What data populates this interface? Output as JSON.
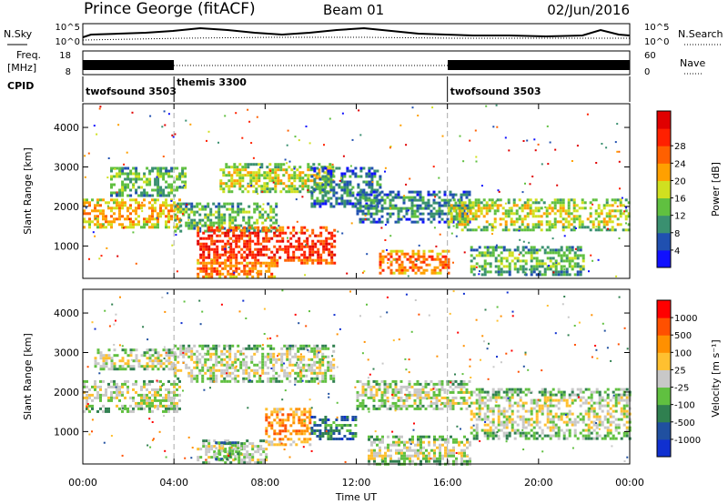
{
  "header": {
    "station": "Prince George (fitACF)",
    "beam": "Beam 01",
    "date": "02/Jun/2016"
  },
  "top_panels": {
    "nsky_label": "N.Sky",
    "nsky_ticks": [
      "10^5",
      "10^0"
    ],
    "nsearch_label": "N.Search",
    "nsearch_ticks": [
      "10^5",
      "10^0"
    ],
    "freq_label": "Freq.",
    "freq_unit": "[MHz]",
    "freq_ticks": [
      "18",
      "8"
    ],
    "nave_label": "Nave",
    "nave_ticks": [
      "60",
      "0"
    ],
    "cpid_label": "CPID",
    "cpid_segments": [
      {
        "name": "twofsound 3503",
        "start_h": 0,
        "end_h": 4
      },
      {
        "name": "themis 3300",
        "start_h": 4,
        "end_h": 16
      },
      {
        "name": "twofsound 3503",
        "start_h": 16,
        "end_h": 24
      }
    ]
  },
  "chart_data": [
    {
      "type": "heatmap",
      "name": "power",
      "ylabel": "Slant Range [km]",
      "x_range_h": [
        0,
        24
      ],
      "ylim": [
        180,
        4600
      ],
      "yticks": [
        "1000",
        "2000",
        "3000",
        "4000"
      ],
      "colorbar_label": "Power [dB]",
      "colorbar_ticks": [
        "4",
        "8",
        "12",
        "16",
        "20",
        "24",
        "28"
      ],
      "colors": [
        "#1010ff",
        "#2050b0",
        "#3a9070",
        "#60c040",
        "#d0e020",
        "#ffa000",
        "#ff6000",
        "#ff2000",
        "#e00000"
      ],
      "bands": [
        {
          "t0": 0,
          "t1": 4.2,
          "r_lo": 1500,
          "r_hi": 2200,
          "level": 5
        },
        {
          "t0": 1.2,
          "t1": 4.5,
          "r_lo": 2300,
          "r_hi": 3000,
          "level": 3
        },
        {
          "t0": 4,
          "t1": 8.5,
          "r_lo": 1400,
          "r_hi": 2100,
          "level": 3
        },
        {
          "t0": 6,
          "t1": 11,
          "r_lo": 2400,
          "r_hi": 3100,
          "level": 4
        },
        {
          "t0": 5,
          "t1": 11,
          "r_lo": 600,
          "r_hi": 1500,
          "level": 7
        },
        {
          "t0": 5,
          "t1": 8.5,
          "r_lo": 200,
          "r_hi": 600,
          "level": 6
        },
        {
          "t0": 10,
          "t1": 13,
          "r_lo": 2000,
          "r_hi": 3000,
          "level": 2
        },
        {
          "t0": 12,
          "t1": 17,
          "r_lo": 1600,
          "r_hi": 2400,
          "level": 2
        },
        {
          "t0": 13,
          "t1": 16,
          "r_lo": 300,
          "r_hi": 900,
          "level": 6
        },
        {
          "t0": 16,
          "t1": 24,
          "r_lo": 1400,
          "r_hi": 2200,
          "level": 4
        },
        {
          "t0": 17,
          "t1": 22,
          "r_lo": 300,
          "r_hi": 1000,
          "level": 3
        }
      ]
    },
    {
      "type": "heatmap",
      "name": "velocity",
      "ylabel": "Slant Range [km]",
      "xlabel": "Time UT",
      "x_range_h": [
        0,
        24
      ],
      "xticks": [
        "00:00",
        "04:00",
        "08:00",
        "12:00",
        "16:00",
        "20:00",
        "00:00"
      ],
      "ylim": [
        180,
        4600
      ],
      "yticks": [
        "1000",
        "2000",
        "3000",
        "4000"
      ],
      "colorbar_label": "Velocity [m s⁻¹]",
      "colorbar_ticks": [
        "1000",
        "500",
        "100",
        "25",
        "-25",
        "-100",
        "-500",
        "-1000"
      ],
      "colors": [
        "#1030d0",
        "#2050a0",
        "#308050",
        "#60c040",
        "#c8c8c8",
        "#ffc030",
        "#ff9000",
        "#ff5000",
        "#ff0000"
      ],
      "bands": [
        {
          "t0": 0,
          "t1": 4.2,
          "r_lo": 1500,
          "r_hi": 2300,
          "level": 4
        },
        {
          "t0": 0.5,
          "t1": 4,
          "r_lo": 2600,
          "r_hi": 3100,
          "level": 4
        },
        {
          "t0": 4,
          "t1": 11,
          "r_lo": 2300,
          "r_hi": 3200,
          "level": 4
        },
        {
          "t0": 5,
          "t1": 8,
          "r_lo": 200,
          "r_hi": 800,
          "level": 4
        },
        {
          "t0": 5.8,
          "t1": 7,
          "r_lo": 300,
          "r_hi": 750,
          "level": 3
        },
        {
          "t0": 8,
          "t1": 10,
          "r_lo": 700,
          "r_hi": 1600,
          "level": 6
        },
        {
          "t0": 10,
          "t1": 12,
          "r_lo": 800,
          "r_hi": 1400,
          "level": 2
        },
        {
          "t0": 12.5,
          "t1": 17,
          "r_lo": 200,
          "r_hi": 900,
          "level": 4
        },
        {
          "t0": 12,
          "t1": 17,
          "r_lo": 1600,
          "r_hi": 2300,
          "level": 4
        },
        {
          "t0": 17,
          "t1": 24,
          "r_lo": 800,
          "r_hi": 2100,
          "level": 4
        }
      ]
    }
  ]
}
